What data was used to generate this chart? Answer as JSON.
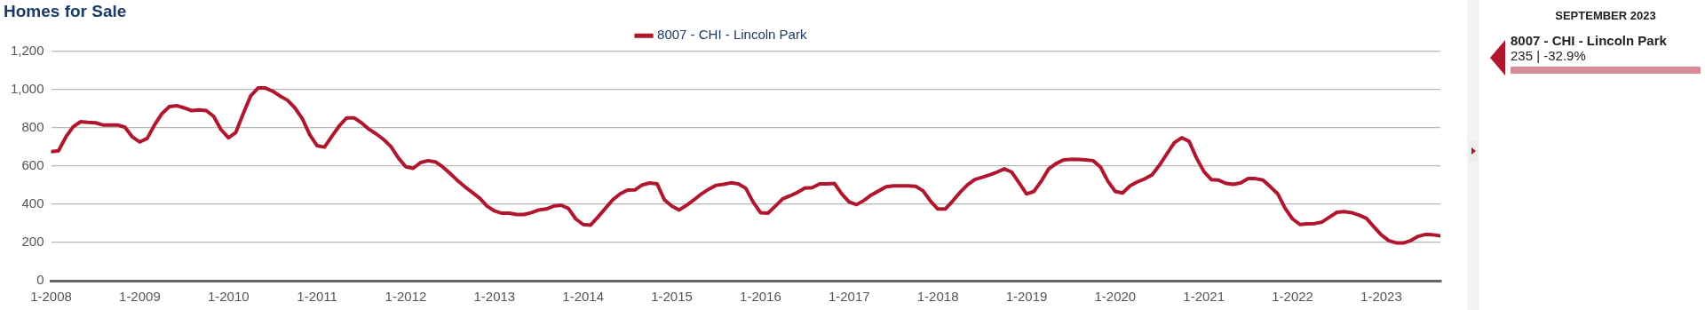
{
  "chart_data": {
    "type": "line",
    "title": "Homes for Sale",
    "x": [
      "2008-01",
      "2008-02",
      "2008-03",
      "2008-04",
      "2008-05",
      "2008-06",
      "2008-07",
      "2008-08",
      "2008-09",
      "2008-10",
      "2008-11",
      "2008-12",
      "2009-01",
      "2009-02",
      "2009-03",
      "2009-04",
      "2009-05",
      "2009-06",
      "2009-07",
      "2009-08",
      "2009-09",
      "2009-10",
      "2009-11",
      "2009-12",
      "2010-01",
      "2010-02",
      "2010-03",
      "2010-04",
      "2010-05",
      "2010-06",
      "2010-07",
      "2010-08",
      "2010-09",
      "2010-10",
      "2010-11",
      "2010-12",
      "2011-01",
      "2011-02",
      "2011-03",
      "2011-04",
      "2011-05",
      "2011-06",
      "2011-07",
      "2011-08",
      "2011-09",
      "2011-10",
      "2011-11",
      "2011-12",
      "2012-01",
      "2012-02",
      "2012-03",
      "2012-04",
      "2012-05",
      "2012-06",
      "2012-07",
      "2012-08",
      "2012-09",
      "2012-10",
      "2012-11",
      "2012-12",
      "2013-01",
      "2013-02",
      "2013-03",
      "2013-04",
      "2013-05",
      "2013-06",
      "2013-07",
      "2013-08",
      "2013-09",
      "2013-10",
      "2013-11",
      "2013-12",
      "2014-01",
      "2014-02",
      "2014-03",
      "2014-04",
      "2014-05",
      "2014-06",
      "2014-07",
      "2014-08",
      "2014-09",
      "2014-10",
      "2014-11",
      "2014-12",
      "2015-01",
      "2015-02",
      "2015-03",
      "2015-04",
      "2015-05",
      "2015-06",
      "2015-07",
      "2015-08",
      "2015-09",
      "2015-10",
      "2015-11",
      "2015-12",
      "2016-01",
      "2016-02",
      "2016-03",
      "2016-04",
      "2016-05",
      "2016-06",
      "2016-07",
      "2016-08",
      "2016-09",
      "2016-10",
      "2016-11",
      "2016-12",
      "2017-01",
      "2017-02",
      "2017-03",
      "2017-04",
      "2017-05",
      "2017-06",
      "2017-07",
      "2017-08",
      "2017-09",
      "2017-10",
      "2017-11",
      "2017-12",
      "2018-01",
      "2018-02",
      "2018-03",
      "2018-04",
      "2018-05",
      "2018-06",
      "2018-07",
      "2018-08",
      "2018-09",
      "2018-10",
      "2018-11",
      "2018-12",
      "2019-01",
      "2019-02",
      "2019-03",
      "2019-04",
      "2019-05",
      "2019-06",
      "2019-07",
      "2019-08",
      "2019-09",
      "2019-10",
      "2019-11",
      "2019-12",
      "2020-01",
      "2020-02",
      "2020-03",
      "2020-04",
      "2020-05",
      "2020-06",
      "2020-07",
      "2020-08",
      "2020-09",
      "2020-10",
      "2020-11",
      "2020-12",
      "2021-01",
      "2021-02",
      "2021-03",
      "2021-04",
      "2021-05",
      "2021-06",
      "2021-07",
      "2021-08",
      "2021-09",
      "2021-10",
      "2021-11",
      "2021-12",
      "2022-01",
      "2022-02",
      "2022-03",
      "2022-04",
      "2022-05",
      "2022-06",
      "2022-07",
      "2022-08",
      "2022-09",
      "2022-10",
      "2022-11",
      "2022-12",
      "2023-01",
      "2023-02",
      "2023-03",
      "2023-04",
      "2023-05",
      "2023-06",
      "2023-07",
      "2023-08",
      "2023-09"
    ],
    "series": [
      {
        "name": "8007 - CHI - Lincoln Park",
        "color": "#b0172e",
        "values": [
          675,
          680,
          752,
          806,
          832,
          828,
          826,
          815,
          815,
          815,
          803,
          752,
          726,
          744,
          815,
          874,
          911,
          916,
          904,
          890,
          894,
          890,
          860,
          790,
          748,
          776,
          874,
          966,
          1008,
          1008,
          991,
          966,
          944,
          904,
          848,
          764,
          706,
          699,
          756,
          810,
          852,
          852,
          826,
          793,
          768,
          739,
          701,
          642,
          596,
          588,
          618,
          628,
          622,
          595,
          561,
          524,
          491,
          462,
          432,
          390,
          365,
          353,
          353,
          346,
          346,
          356,
          370,
          375,
          390,
          395,
          378,
          323,
          294,
          291,
          333,
          378,
          423,
          454,
          474,
          475,
          501,
          511,
          507,
          423,
          390,
          370,
          395,
          423,
          454,
          479,
          499,
          504,
          512,
          507,
          484,
          412,
          356,
          353,
          390,
          428,
          444,
          462,
          484,
          487,
          507,
          507,
          509,
          454,
          412,
          398,
          420,
          449,
          470,
          491,
          496,
          496,
          496,
          494,
          470,
          417,
          375,
          375,
          417,
          462,
          501,
          529,
          541,
          554,
          568,
          585,
          568,
          512,
          454,
          467,
          521,
          585,
          613,
          632,
          635,
          634,
          632,
          628,
          595,
          521,
          467,
          459,
          496,
          517,
          533,
          554,
          605,
          664,
          722,
          748,
          729,
          642,
          571,
          529,
          526,
          509,
          504,
          512,
          534,
          534,
          526,
          491,
          454,
          378,
          323,
          294,
          297,
          299,
          307,
          333,
          358,
          361,
          356,
          343,
          326,
          282,
          240,
          210,
          198,
          197,
          210,
          232,
          242,
          240,
          235
        ]
      }
    ],
    "xlim": [
      "2008-01",
      "2023-09"
    ],
    "xticks": [
      {
        "value": "2008-01",
        "label": "1-2008"
      },
      {
        "value": "2009-01",
        "label": "1-2009"
      },
      {
        "value": "2010-01",
        "label": "1-2010"
      },
      {
        "value": "2011-01",
        "label": "1-2011"
      },
      {
        "value": "2012-01",
        "label": "1-2012"
      },
      {
        "value": "2013-01",
        "label": "1-2013"
      },
      {
        "value": "2014-01",
        "label": "1-2014"
      },
      {
        "value": "2015-01",
        "label": "1-2015"
      },
      {
        "value": "2016-01",
        "label": "1-2016"
      },
      {
        "value": "2017-01",
        "label": "1-2017"
      },
      {
        "value": "2018-01",
        "label": "1-2018"
      },
      {
        "value": "2019-01",
        "label": "1-2019"
      },
      {
        "value": "2020-01",
        "label": "1-2020"
      },
      {
        "value": "2021-01",
        "label": "1-2021"
      },
      {
        "value": "2022-01",
        "label": "1-2022"
      },
      {
        "value": "2023-01",
        "label": "1-2023"
      }
    ],
    "ylim": [
      0,
      1200
    ],
    "yticks": [
      0,
      200,
      400,
      600,
      800,
      {
        "value": 1000,
        "label": "1,000"
      },
      {
        "value": 1200,
        "label": "1,200"
      }
    ],
    "grid": "y",
    "legend": "top",
    "marker": "none",
    "line_style": "solid",
    "annotations": [
      "SEPTEMBER 2023",
      "8007 - CHI - Lincoln Park",
      "235 | -32.9%"
    ]
  }
}
